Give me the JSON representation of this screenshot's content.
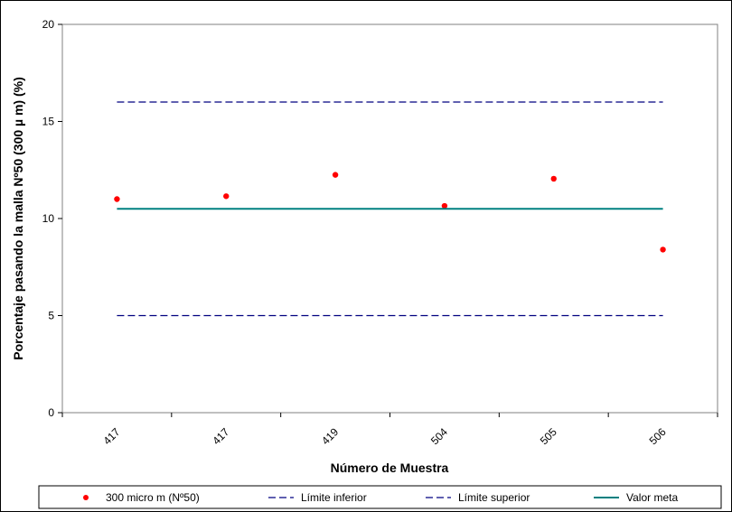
{
  "chart_data": {
    "type": "scatter",
    "title": "",
    "xlabel": "Número de Muestra",
    "ylabel": "Porcentaje pasando la malla Nº50 (300 µ m) (%)",
    "categories": [
      "417",
      "417",
      "419",
      "504",
      "505",
      "506"
    ],
    "ylim": [
      0,
      20
    ],
    "yticks": [
      0,
      5,
      10,
      15,
      20
    ],
    "grid": false,
    "legend_position": "bottom",
    "series": [
      {
        "name": "300 micro m (Nº50)",
        "kind": "points",
        "color": "#ff0000",
        "values": [
          11.0,
          11.15,
          12.25,
          10.65,
          12.05,
          8.4
        ]
      },
      {
        "name": "Límite inferior",
        "kind": "dashed-line",
        "color": "#000080",
        "values": [
          5,
          5,
          5,
          5,
          5,
          5
        ]
      },
      {
        "name": "Límite superior",
        "kind": "dashed-line",
        "color": "#000080",
        "values": [
          16,
          16,
          16,
          16,
          16,
          16
        ]
      },
      {
        "name": "Valor meta",
        "kind": "solid-line",
        "color": "#008080",
        "values": [
          10.5,
          10.5,
          10.5,
          10.5,
          10.5,
          10.5
        ]
      }
    ]
  }
}
